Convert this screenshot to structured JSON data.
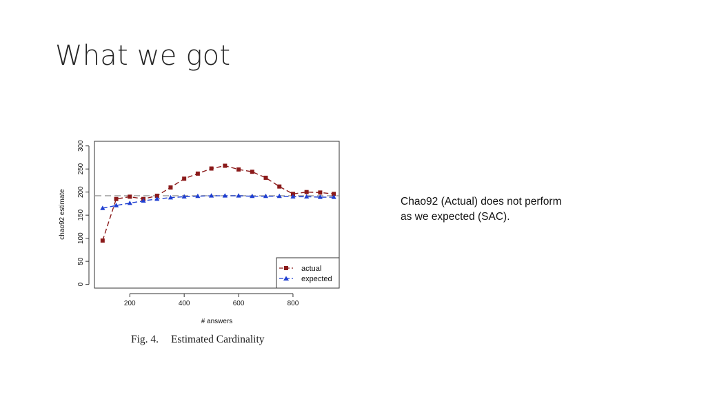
{
  "slide": {
    "title": "What we got"
  },
  "note": {
    "lines": [
      "Chao92 (Actual) does not perform",
      "as we expected (SAC)."
    ]
  },
  "figure": {
    "number": "Fig. 4.",
    "caption": "Estimated Cardinality"
  },
  "chart_data": {
    "type": "line",
    "xlabel": "# answers",
    "ylabel": "chao92 estimate",
    "xlim": [
      70,
      970
    ],
    "ylim": [
      -8,
      310
    ],
    "x_ticks": [
      200,
      400,
      600,
      800
    ],
    "y_ticks": [
      0,
      50,
      100,
      150,
      200,
      250,
      300
    ],
    "x": [
      100,
      150,
      200,
      250,
      300,
      350,
      400,
      450,
      500,
      550,
      600,
      650,
      700,
      750,
      800,
      850,
      900,
      950
    ],
    "series": [
      {
        "name": "actual",
        "color": "#8b1a1a",
        "marker": "square",
        "values": [
          95,
          185,
          190,
          185,
          192,
          210,
          229,
          240,
          251,
          257,
          249,
          244,
          231,
          212,
          196,
          200,
          199,
          196
        ]
      },
      {
        "name": "expected",
        "color": "#1f3fd1",
        "marker": "triangle",
        "values": [
          165,
          171,
          176,
          181,
          185,
          188,
          190,
          191,
          192,
          192,
          192,
          191,
          191,
          191,
          190,
          190,
          189,
          189
        ]
      }
    ],
    "reference_line": {
      "y": 192,
      "color": "#b5b5b5",
      "style": "dashed"
    },
    "legend_position": "bottom-right",
    "grid": false
  }
}
